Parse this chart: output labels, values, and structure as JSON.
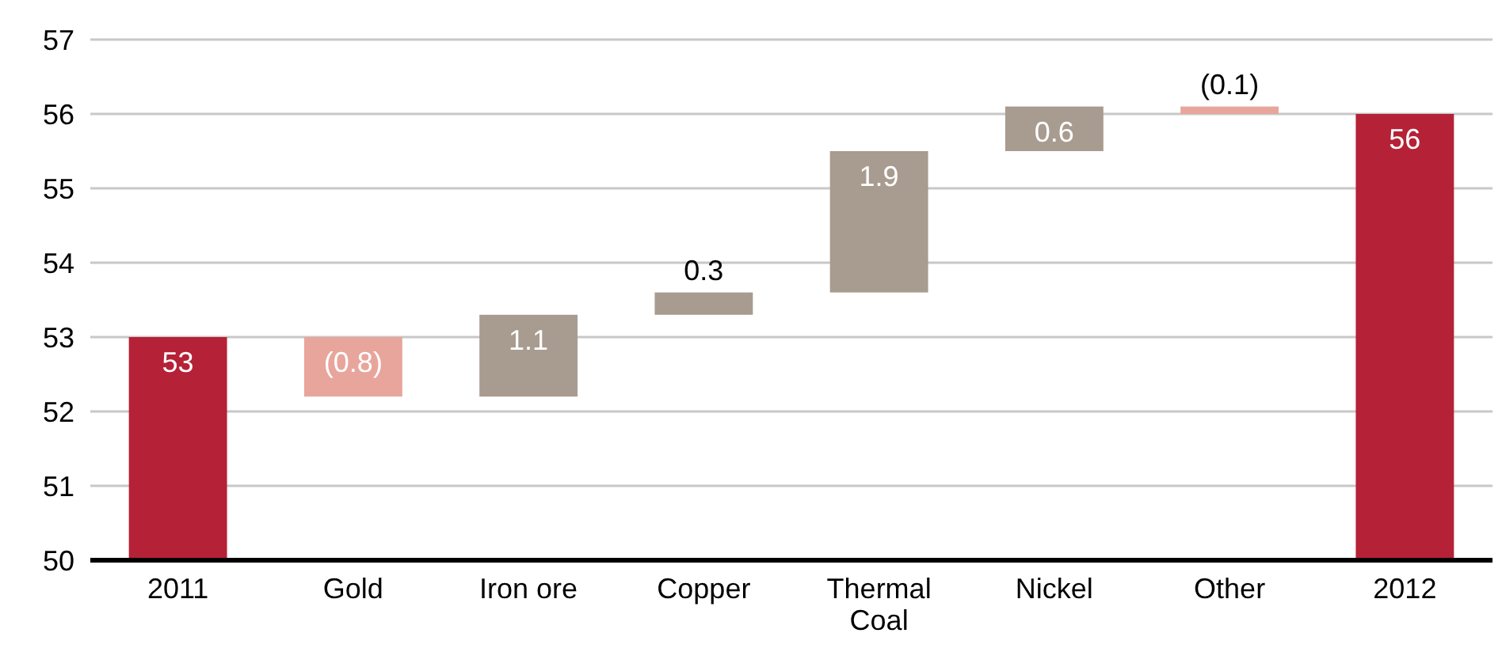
{
  "chart_data": {
    "type": "bar",
    "categories": [
      "2011",
      "Gold",
      "Iron ore",
      "Copper",
      "Thermal Coal",
      "Nickel",
      "Other",
      "2012"
    ],
    "values": [
      53,
      -0.8,
      1.1,
      0.3,
      1.9,
      0.6,
      -0.1,
      56
    ],
    "base": [
      null,
      53,
      52.2,
      53.3,
      53.6,
      55.5,
      56.1,
      null
    ],
    "colors": [
      "#b52136",
      "#e8a59c",
      "#a89b90",
      "#a89b90",
      "#a89b90",
      "#a89b90",
      "#e8a59c",
      "#b52136"
    ],
    "value_labels": [
      "53",
      "(0.8)",
      "1.1",
      "0.3",
      "1.9",
      "0.6",
      "(0.1)",
      "56"
    ],
    "ylim": [
      50,
      57
    ],
    "yticks": [
      50,
      51,
      52,
      53,
      54,
      55,
      56,
      57
    ],
    "grid": "y"
  }
}
